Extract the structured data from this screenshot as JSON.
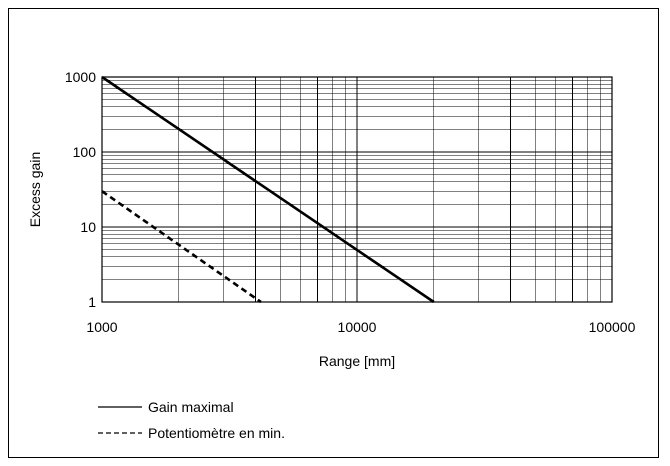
{
  "chart_data": {
    "type": "line",
    "xlabel": "Range [mm]",
    "ylabel": "Excess gain",
    "xscale": "log",
    "yscale": "log",
    "xlim": [
      1000,
      100000
    ],
    "ylim": [
      1,
      1000
    ],
    "grid": true,
    "x_ticks": [
      "1000",
      "10000",
      "100000"
    ],
    "y_ticks": [
      "1",
      "10",
      "100",
      "1000"
    ],
    "legend_position": "bottom-left",
    "series": [
      {
        "name": "Gain maximal",
        "style": "solid",
        "color": "#000000",
        "x": [
          1000,
          20000
        ],
        "y": [
          1000,
          1
        ]
      },
      {
        "name": "Potentiomètre en min.",
        "style": "dashed",
        "color": "#000000",
        "x": [
          1000,
          4200
        ],
        "y": [
          30,
          1
        ]
      }
    ]
  }
}
